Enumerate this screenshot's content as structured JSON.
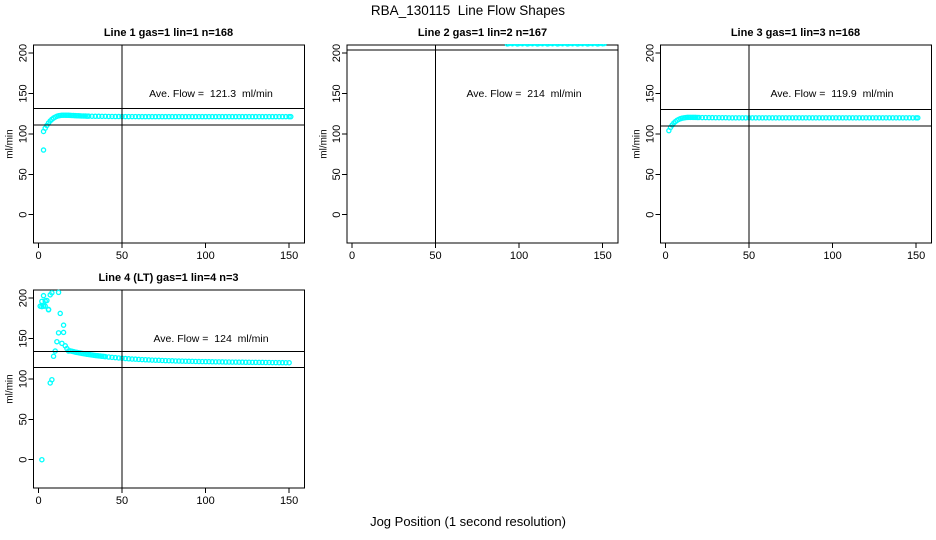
{
  "main_title": "RBA_130115  Line Flow Shapes",
  "x_axis_label": "Jog Position (1 second resolution)",
  "point_color": "#00FFFF",
  "line_color": "#000000",
  "chart_data": [
    {
      "type": "scatter",
      "title": "Line 1 gas=1 lin=1 n=168",
      "annotation": "Ave. Flow =  121.3  ml/min",
      "ave_flow": 121.3,
      "ylabel": "ml/min",
      "xticks": [
        0,
        50,
        100,
        150
      ],
      "yticks": [
        0,
        50,
        100,
        150,
        200
      ],
      "xlim": [
        -3,
        159.2
      ],
      "ylim": [
        -35,
        210
      ],
      "vline_x": 50,
      "hlines": [
        131.3,
        111.3
      ],
      "grid": false,
      "points": [
        [
          3,
          80
        ],
        [
          3,
          103
        ],
        [
          4,
          107
        ],
        [
          5,
          110.5
        ],
        [
          6,
          113.5
        ],
        [
          7,
          116
        ],
        [
          8,
          118
        ],
        [
          9,
          119.6
        ],
        [
          10,
          120.8
        ],
        [
          11,
          121.8
        ],
        [
          12,
          122.4
        ],
        [
          13,
          122.8
        ],
        [
          14,
          123
        ],
        [
          15,
          123.1
        ],
        [
          16,
          123.1
        ],
        [
          17,
          123
        ],
        [
          18,
          123
        ],
        [
          19,
          122.9
        ],
        [
          20,
          122.8
        ],
        [
          21,
          122.7
        ],
        [
          22,
          122.6
        ],
        [
          23,
          122.5
        ],
        [
          24,
          122.4
        ],
        [
          25,
          122.3
        ],
        [
          26,
          122.2
        ],
        [
          27,
          122.2
        ],
        [
          28,
          122.1
        ],
        [
          29,
          122
        ],
        [
          30,
          122
        ],
        [
          32,
          121.9
        ],
        [
          34,
          121.8
        ],
        [
          36,
          121.8
        ],
        [
          38,
          121.7
        ],
        [
          40,
          121.7
        ],
        [
          42,
          121.6
        ],
        [
          44,
          121.6
        ],
        [
          46,
          121.5
        ],
        [
          48,
          121.5
        ],
        [
          50,
          121.5
        ],
        [
          52,
          121.4
        ],
        [
          54,
          121.4
        ],
        [
          56,
          121.4
        ],
        [
          58,
          121.4
        ],
        [
          60,
          121.3
        ],
        [
          62,
          121.3
        ],
        [
          64,
          121.3
        ],
        [
          66,
          121.3
        ],
        [
          68,
          121.3
        ],
        [
          70,
          121.3
        ],
        [
          72,
          121.3
        ],
        [
          74,
          121.3
        ],
        [
          76,
          121.3
        ],
        [
          78,
          121.3
        ],
        [
          80,
          121.3
        ],
        [
          82,
          121.3
        ],
        [
          84,
          121.3
        ],
        [
          86,
          121.3
        ],
        [
          88,
          121.3
        ],
        [
          90,
          121.3
        ],
        [
          92,
          121.3
        ],
        [
          94,
          121.3
        ],
        [
          96,
          121.3
        ],
        [
          98,
          121.3
        ],
        [
          100,
          121.3
        ],
        [
          102,
          121.3
        ],
        [
          104,
          121.3
        ],
        [
          106,
          121.3
        ],
        [
          108,
          121.3
        ],
        [
          110,
          121.3
        ],
        [
          112,
          121.3
        ],
        [
          114,
          121.3
        ],
        [
          116,
          121.3
        ],
        [
          118,
          121.3
        ],
        [
          120,
          121.3
        ],
        [
          122,
          121.3
        ],
        [
          124,
          121.3
        ],
        [
          126,
          121.3
        ],
        [
          128,
          121.3
        ],
        [
          130,
          121.3
        ],
        [
          132,
          121.3
        ],
        [
          134,
          121.3
        ],
        [
          136,
          121.3
        ],
        [
          138,
          121.3
        ],
        [
          140,
          121.3
        ],
        [
          142,
          121.3
        ],
        [
          144,
          121.3
        ],
        [
          146,
          121.3
        ],
        [
          148,
          121.3
        ],
        [
          150,
          121.3
        ],
        [
          151,
          121.3
        ]
      ]
    },
    {
      "type": "scatter",
      "title": "Line 2 gas=1 lin=2 n=167",
      "annotation": "Ave. Flow =  214  ml/min",
      "ave_flow": 214,
      "ylabel": "ml/min",
      "xticks": [
        0,
        50,
        100,
        150
      ],
      "yticks": [
        0,
        50,
        100,
        150,
        200
      ],
      "xlim": [
        -3,
        159.2
      ],
      "ylim": [
        -35,
        210
      ],
      "vline_x": 50,
      "hlines": [
        224,
        204
      ],
      "grid": false,
      "points": [
        [
          93,
          211.4
        ],
        [
          94,
          211.9
        ],
        [
          95,
          212.5
        ],
        [
          96,
          211.6
        ],
        [
          97,
          213
        ],
        [
          98,
          212.1
        ],
        [
          99,
          211.4
        ],
        [
          100,
          211.9
        ],
        [
          101,
          212.5
        ],
        [
          102,
          211.6
        ],
        [
          103,
          213
        ],
        [
          104,
          212.1
        ],
        [
          105,
          211.4
        ],
        [
          106,
          211.9
        ],
        [
          107,
          212.5
        ],
        [
          108,
          211.6
        ],
        [
          109,
          213
        ],
        [
          110,
          212.1
        ],
        [
          111,
          211.4
        ],
        [
          112,
          211.9
        ],
        [
          113,
          212.5
        ],
        [
          114,
          211.6
        ],
        [
          115,
          213
        ],
        [
          116,
          212.1
        ],
        [
          117,
          211.4
        ],
        [
          118,
          211.9
        ],
        [
          119,
          212.5
        ],
        [
          120,
          211.6
        ],
        [
          121,
          213
        ],
        [
          122,
          212.1
        ],
        [
          123,
          211.4
        ],
        [
          124,
          211.9
        ],
        [
          125,
          212.5
        ],
        [
          126,
          211.6
        ],
        [
          127,
          213
        ],
        [
          128,
          212.1
        ],
        [
          129,
          211.4
        ],
        [
          130,
          211.9
        ],
        [
          131,
          212.5
        ],
        [
          132,
          211.6
        ],
        [
          133,
          213
        ],
        [
          134,
          212.1
        ],
        [
          135,
          211.4
        ],
        [
          136,
          211.9
        ],
        [
          137,
          212.5
        ],
        [
          138,
          211.6
        ],
        [
          139,
          213
        ],
        [
          140,
          212.1
        ],
        [
          141,
          211.4
        ],
        [
          142,
          211.9
        ],
        [
          143,
          212.5
        ],
        [
          144,
          211.6
        ],
        [
          145,
          213
        ],
        [
          146,
          212.1
        ],
        [
          147,
          211.4
        ],
        [
          148,
          211.9
        ],
        [
          149,
          212.5
        ],
        [
          150,
          211.6
        ],
        [
          151,
          211.9
        ]
      ]
    },
    {
      "type": "scatter",
      "title": "Line 3 gas=1 lin=3 n=168",
      "annotation": "Ave. Flow =  119.9  ml/min",
      "ave_flow": 119.9,
      "ylabel": "ml/min",
      "xticks": [
        0,
        50,
        100,
        150
      ],
      "yticks": [
        0,
        50,
        100,
        150,
        200
      ],
      "xlim": [
        -3,
        159.2
      ],
      "ylim": [
        -35,
        210
      ],
      "vline_x": 50,
      "hlines": [
        129.9,
        109.9
      ],
      "grid": false,
      "points": [
        [
          2,
          104
        ],
        [
          3,
          108
        ],
        [
          4,
          111
        ],
        [
          5,
          113.5
        ],
        [
          6,
          115.4
        ],
        [
          7,
          116.9
        ],
        [
          8,
          118
        ],
        [
          9,
          118.9
        ],
        [
          10,
          119.5
        ],
        [
          11,
          119.9
        ],
        [
          12,
          120.2
        ],
        [
          13,
          120.4
        ],
        [
          14,
          120.5
        ],
        [
          15,
          120.5
        ],
        [
          16,
          120.5
        ],
        [
          17,
          120.4
        ],
        [
          18,
          120.4
        ],
        [
          19,
          120.3
        ],
        [
          20,
          120.3
        ],
        [
          22,
          120.2
        ],
        [
          24,
          120.2
        ],
        [
          26,
          120.1
        ],
        [
          28,
          120.1
        ],
        [
          30,
          120
        ],
        [
          32,
          120
        ],
        [
          34,
          120
        ],
        [
          36,
          120
        ],
        [
          38,
          119.9
        ],
        [
          40,
          119.9
        ],
        [
          42,
          119.9
        ],
        [
          44,
          119.9
        ],
        [
          46,
          119.9
        ],
        [
          48,
          119.9
        ],
        [
          50,
          119.9
        ],
        [
          52,
          119.9
        ],
        [
          54,
          119.9
        ],
        [
          56,
          119.9
        ],
        [
          58,
          119.9
        ],
        [
          60,
          119.9
        ],
        [
          62,
          119.9
        ],
        [
          64,
          119.9
        ],
        [
          66,
          119.9
        ],
        [
          68,
          119.9
        ],
        [
          70,
          119.9
        ],
        [
          72,
          119.9
        ],
        [
          74,
          119.9
        ],
        [
          76,
          119.9
        ],
        [
          78,
          119.9
        ],
        [
          80,
          119.9
        ],
        [
          82,
          119.9
        ],
        [
          84,
          119.9
        ],
        [
          86,
          119.9
        ],
        [
          88,
          119.9
        ],
        [
          90,
          119.9
        ],
        [
          92,
          119.9
        ],
        [
          94,
          119.9
        ],
        [
          96,
          119.9
        ],
        [
          98,
          119.9
        ],
        [
          100,
          119.9
        ],
        [
          102,
          119.9
        ],
        [
          104,
          119.9
        ],
        [
          106,
          119.9
        ],
        [
          108,
          119.9
        ],
        [
          110,
          119.9
        ],
        [
          112,
          119.9
        ],
        [
          114,
          119.9
        ],
        [
          116,
          119.9
        ],
        [
          118,
          119.9
        ],
        [
          120,
          119.9
        ],
        [
          122,
          119.9
        ],
        [
          124,
          119.9
        ],
        [
          126,
          119.9
        ],
        [
          128,
          119.9
        ],
        [
          130,
          119.9
        ],
        [
          132,
          119.9
        ],
        [
          134,
          119.9
        ],
        [
          136,
          119.9
        ],
        [
          138,
          119.9
        ],
        [
          140,
          119.9
        ],
        [
          142,
          119.9
        ],
        [
          144,
          119.9
        ],
        [
          146,
          119.9
        ],
        [
          148,
          119.9
        ],
        [
          150,
          119.9
        ],
        [
          151,
          119.9
        ]
      ]
    },
    {
      "type": "scatter",
      "title": "Line 4 (LT) gas=1 lin=4 n=3",
      "annotation": "Ave. Flow =  124  ml/min",
      "ave_flow": 124,
      "ylabel": "ml/min",
      "xticks": [
        0,
        50,
        100,
        150
      ],
      "yticks": [
        0,
        50,
        100,
        150,
        200
      ],
      "xlim": [
        -3,
        159.2
      ],
      "ylim": [
        -35,
        210
      ],
      "vline_x": 50,
      "hlines": [
        134,
        114
      ],
      "grid": false,
      "points": [
        [
          1,
          190
        ],
        [
          2,
          196
        ],
        [
          2,
          189.5
        ],
        [
          3,
          190
        ],
        [
          3,
          203
        ],
        [
          4,
          190
        ],
        [
          4,
          196.5
        ],
        [
          5,
          197
        ],
        [
          6,
          186
        ],
        [
          6,
          185.5
        ],
        [
          7,
          204
        ],
        [
          8,
          206.5
        ],
        [
          12,
          207
        ],
        [
          13,
          181
        ],
        [
          15,
          166.5
        ],
        [
          12,
          157
        ],
        [
          15,
          157.5
        ],
        [
          11,
          146
        ],
        [
          14,
          144
        ],
        [
          16,
          141
        ],
        [
          17,
          137.5
        ],
        [
          10,
          134.5
        ],
        [
          18,
          134.5
        ],
        [
          9,
          128
        ],
        [
          8,
          99
        ],
        [
          7,
          95
        ],
        [
          2,
          0
        ],
        [
          19,
          134.7
        ],
        [
          20,
          134.2
        ],
        [
          21,
          133.7
        ],
        [
          22,
          133.2
        ],
        [
          23,
          132.8
        ],
        [
          24,
          132.4
        ],
        [
          25,
          132
        ],
        [
          26,
          131.6
        ],
        [
          27,
          131.2
        ],
        [
          28,
          130.9
        ],
        [
          29,
          130.5
        ],
        [
          30,
          130.2
        ],
        [
          31,
          129.9
        ],
        [
          32,
          129.6
        ],
        [
          33,
          129.3
        ],
        [
          34,
          129
        ],
        [
          35,
          128.8
        ],
        [
          36,
          128.5
        ],
        [
          37,
          128.3
        ],
        [
          38,
          128
        ],
        [
          39,
          127.8
        ],
        [
          40,
          127.5
        ],
        [
          42,
          127.1
        ],
        [
          44,
          126.7
        ],
        [
          46,
          126.3
        ],
        [
          48,
          125.9
        ],
        [
          50,
          125.6
        ],
        [
          52,
          125.2
        ],
        [
          54,
          124.9
        ],
        [
          56,
          124.6
        ],
        [
          58,
          124.4
        ],
        [
          60,
          124.1
        ],
        [
          62,
          123.9
        ],
        [
          64,
          123.7
        ],
        [
          66,
          123.5
        ],
        [
          68,
          123.3
        ],
        [
          70,
          123.1
        ],
        [
          72,
          123
        ],
        [
          74,
          122.8
        ],
        [
          76,
          122.6
        ],
        [
          78,
          122.5
        ],
        [
          80,
          122.4
        ],
        [
          82,
          122.2
        ],
        [
          84,
          122.1
        ],
        [
          86,
          122
        ],
        [
          88,
          121.9
        ],
        [
          90,
          121.8
        ],
        [
          92,
          121.7
        ],
        [
          94,
          121.6
        ],
        [
          96,
          121.5
        ],
        [
          98,
          121.4
        ],
        [
          100,
          121.3
        ],
        [
          102,
          121.3
        ],
        [
          104,
          121.2
        ],
        [
          106,
          121.1
        ],
        [
          108,
          121.1
        ],
        [
          110,
          121
        ],
        [
          112,
          120.9
        ],
        [
          114,
          120.9
        ],
        [
          116,
          120.8
        ],
        [
          118,
          120.8
        ],
        [
          120,
          120.7
        ],
        [
          122,
          120.7
        ],
        [
          124,
          120.6
        ],
        [
          126,
          120.6
        ],
        [
          128,
          120.5
        ],
        [
          130,
          120.5
        ],
        [
          132,
          120.4
        ],
        [
          134,
          120.4
        ],
        [
          136,
          120.3
        ],
        [
          138,
          120.3
        ],
        [
          140,
          120.2
        ],
        [
          142,
          120.2
        ],
        [
          144,
          120.1
        ],
        [
          146,
          120.1
        ],
        [
          148,
          120
        ],
        [
          150,
          120
        ]
      ]
    }
  ]
}
